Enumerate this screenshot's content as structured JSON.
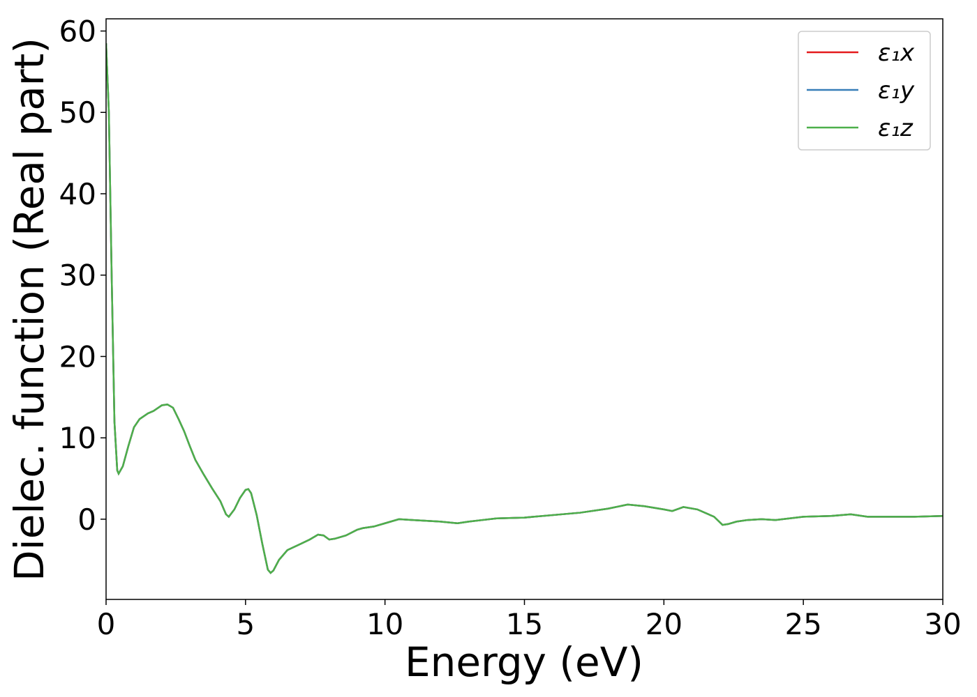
{
  "chart_data": {
    "type": "line",
    "xlabel": "Energy (eV)",
    "ylabel": "Dielec. function (Real part)",
    "x": [
      0,
      0.1,
      0.2,
      0.3,
      0.4,
      0.45,
      0.6,
      0.8,
      1.0,
      1.2,
      1.5,
      1.7,
      2.0,
      2.2,
      2.4,
      2.6,
      2.8,
      3.0,
      3.2,
      3.5,
      3.8,
      4.1,
      4.3,
      4.4,
      4.6,
      4.8,
      5.0,
      5.1,
      5.2,
      5.4,
      5.6,
      5.8,
      5.9,
      6.0,
      6.2,
      6.5,
      7.0,
      7.3,
      7.6,
      7.8,
      8.0,
      8.2,
      8.6,
      9.0,
      9.2,
      9.6,
      10.0,
      10.5,
      11.0,
      11.5,
      12.0,
      12.6,
      13.0,
      13.5,
      14.0,
      15.0,
      16.0,
      17.0,
      18.0,
      18.7,
      19.3,
      20.0,
      20.3,
      20.7,
      21.2,
      21.8,
      22.1,
      22.3,
      22.6,
      23.0,
      23.5,
      24.0,
      25.0,
      26.0,
      26.7,
      27.3,
      28.0,
      29.0,
      30.0
    ],
    "series": [
      {
        "name": "ε₁x",
        "color": "#e41a1c",
        "values": [
          58.5,
          50,
          30,
          12,
          6,
          5.6,
          6.5,
          9,
          11.3,
          12.3,
          13,
          13.3,
          14,
          14.1,
          13.7,
          12.3,
          10.8,
          9,
          7.3,
          5.5,
          3.8,
          2.2,
          0.6,
          0.3,
          1.2,
          2.6,
          3.6,
          3.7,
          3.2,
          0.5,
          -3,
          -6.2,
          -6.6,
          -6.3,
          -5,
          -3.8,
          -3,
          -2.5,
          -1.9,
          -2.0,
          -2.5,
          -2.4,
          -2.0,
          -1.3,
          -1.1,
          -0.9,
          -0.5,
          0,
          -0.1,
          -0.2,
          -0.3,
          -0.5,
          -0.3,
          -0.1,
          0.1,
          0.2,
          0.5,
          0.8,
          1.3,
          1.8,
          1.6,
          1.2,
          1.0,
          1.5,
          1.2,
          0.3,
          -0.7,
          -0.6,
          -0.3,
          -0.1,
          0,
          -0.1,
          0.3,
          0.4,
          0.6,
          0.3,
          0.3,
          0.3,
          0.4
        ]
      },
      {
        "name": "ε₁y",
        "color": "#377eb8",
        "values": [
          58.5,
          50,
          30,
          12,
          6,
          5.6,
          6.5,
          9,
          11.3,
          12.3,
          13,
          13.3,
          14,
          14.1,
          13.7,
          12.3,
          10.8,
          9,
          7.3,
          5.5,
          3.8,
          2.2,
          0.6,
          0.3,
          1.2,
          2.6,
          3.6,
          3.7,
          3.2,
          0.5,
          -3,
          -6.2,
          -6.6,
          -6.3,
          -5,
          -3.8,
          -3,
          -2.5,
          -1.9,
          -2.0,
          -2.5,
          -2.4,
          -2.0,
          -1.3,
          -1.1,
          -0.9,
          -0.5,
          0,
          -0.1,
          -0.2,
          -0.3,
          -0.5,
          -0.3,
          -0.1,
          0.1,
          0.2,
          0.5,
          0.8,
          1.3,
          1.8,
          1.6,
          1.2,
          1.0,
          1.5,
          1.2,
          0.3,
          -0.7,
          -0.6,
          -0.3,
          -0.1,
          0,
          -0.1,
          0.3,
          0.4,
          0.6,
          0.3,
          0.3,
          0.3,
          0.4
        ]
      },
      {
        "name": "ε₁z",
        "color": "#4daf4a",
        "values": [
          58.5,
          50,
          30,
          12,
          6,
          5.6,
          6.5,
          9,
          11.3,
          12.3,
          13,
          13.3,
          14,
          14.1,
          13.7,
          12.3,
          10.8,
          9,
          7.3,
          5.5,
          3.8,
          2.2,
          0.6,
          0.3,
          1.2,
          2.6,
          3.6,
          3.7,
          3.2,
          0.5,
          -3,
          -6.2,
          -6.6,
          -6.3,
          -5,
          -3.8,
          -3,
          -2.5,
          -1.9,
          -2.0,
          -2.5,
          -2.4,
          -2.0,
          -1.3,
          -1.1,
          -0.9,
          -0.5,
          0,
          -0.1,
          -0.2,
          -0.3,
          -0.5,
          -0.3,
          -0.1,
          0.1,
          0.2,
          0.5,
          0.8,
          1.3,
          1.8,
          1.6,
          1.2,
          1.0,
          1.5,
          1.2,
          0.3,
          -0.7,
          -0.6,
          -0.3,
          -0.1,
          0,
          -0.1,
          0.3,
          0.4,
          0.6,
          0.3,
          0.3,
          0.3,
          0.4
        ]
      }
    ],
    "xlim": [
      0,
      30
    ],
    "xticks": [
      0,
      5,
      10,
      15,
      20,
      25,
      30
    ],
    "ylim": [
      -9.86,
      61.5
    ],
    "yticks": [
      0,
      10,
      20,
      30,
      40,
      50,
      60
    ],
    "grid": false,
    "legend": "upper right"
  }
}
